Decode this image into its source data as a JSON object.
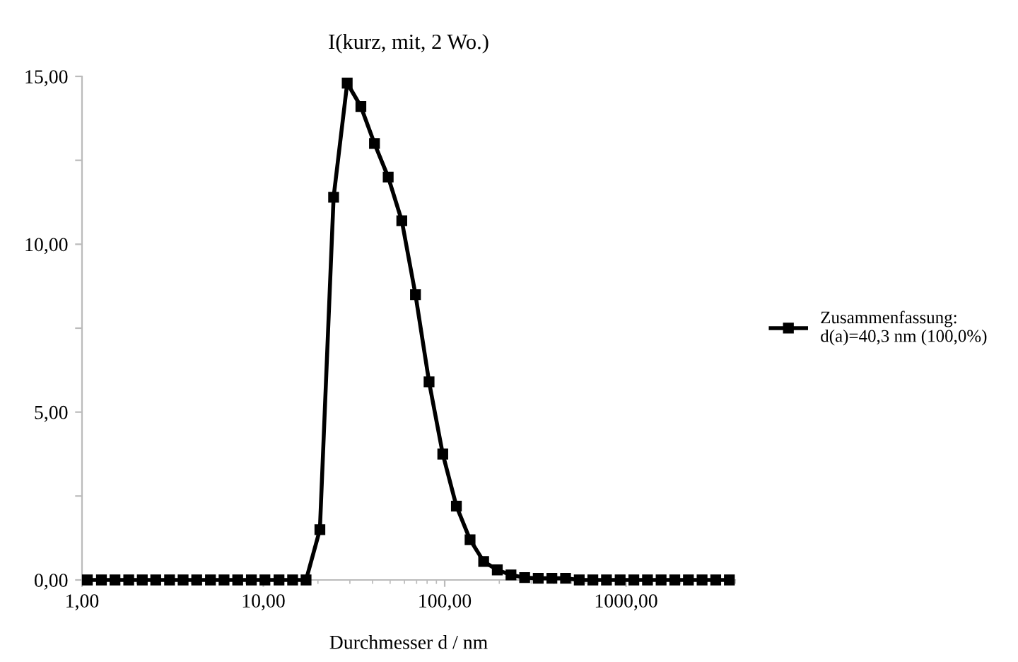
{
  "chart_data": {
    "type": "line",
    "title": "I(kurz, mit, 2 Wo.)",
    "xlabel": "Durchmesser d / nm",
    "log": "x",
    "marker": "square",
    "line_style": "solid",
    "legend": "right",
    "grid": false,
    "xlim": [
      1,
      4000
    ],
    "xticks": [
      {
        "value": 1,
        "label": "1,00"
      },
      {
        "value": 10,
        "label": "10,00"
      },
      {
        "value": 100,
        "label": "100,00"
      },
      {
        "value": 1000,
        "label": "1000,00"
      }
    ],
    "ylim": [
      0,
      15
    ],
    "yticks": [
      {
        "value": 0,
        "label": "0,00"
      },
      {
        "value": 2.5,
        "label": null
      },
      {
        "value": 5,
        "label": "5,00"
      },
      {
        "value": 7.5,
        "label": null
      },
      {
        "value": 10,
        "label": "10,00"
      },
      {
        "value": 12.5,
        "label": null
      },
      {
        "value": 15,
        "label": "15,00"
      }
    ],
    "x": [
      1.07,
      1.28,
      1.52,
      1.81,
      2.15,
      2.55,
      3.04,
      3.61,
      4.29,
      5.11,
      6.07,
      7.22,
      8.59,
      10.2,
      12.2,
      14.5,
      17.2,
      20.5,
      24.4,
      29.0,
      34.5,
      41.0,
      48.8,
      58.0,
      69.0,
      82.0,
      97.6,
      116,
      138,
      164,
      195,
      232,
      276,
      328,
      390,
      464,
      552,
      656,
      780,
      928,
      1104,
      1313,
      1561,
      1857,
      2208,
      2626,
      3123,
      3714
    ],
    "series": [
      {
        "name": "Zusammenfassung:\nd(a)=40,3 nm (100,0%)",
        "color": "#000000",
        "values": [
          0,
          0,
          0,
          0,
          0,
          0,
          0,
          0,
          0,
          0,
          0,
          0,
          0,
          0,
          0,
          0,
          0,
          1.5,
          11.4,
          14.8,
          14.1,
          13.0,
          12.0,
          10.7,
          8.5,
          5.9,
          3.75,
          2.2,
          1.2,
          0.55,
          0.3,
          0.15,
          0.07,
          0.05,
          0.05,
          0.05,
          0,
          0,
          0,
          0,
          0,
          0,
          0,
          0,
          0,
          0,
          0,
          0
        ]
      }
    ]
  }
}
